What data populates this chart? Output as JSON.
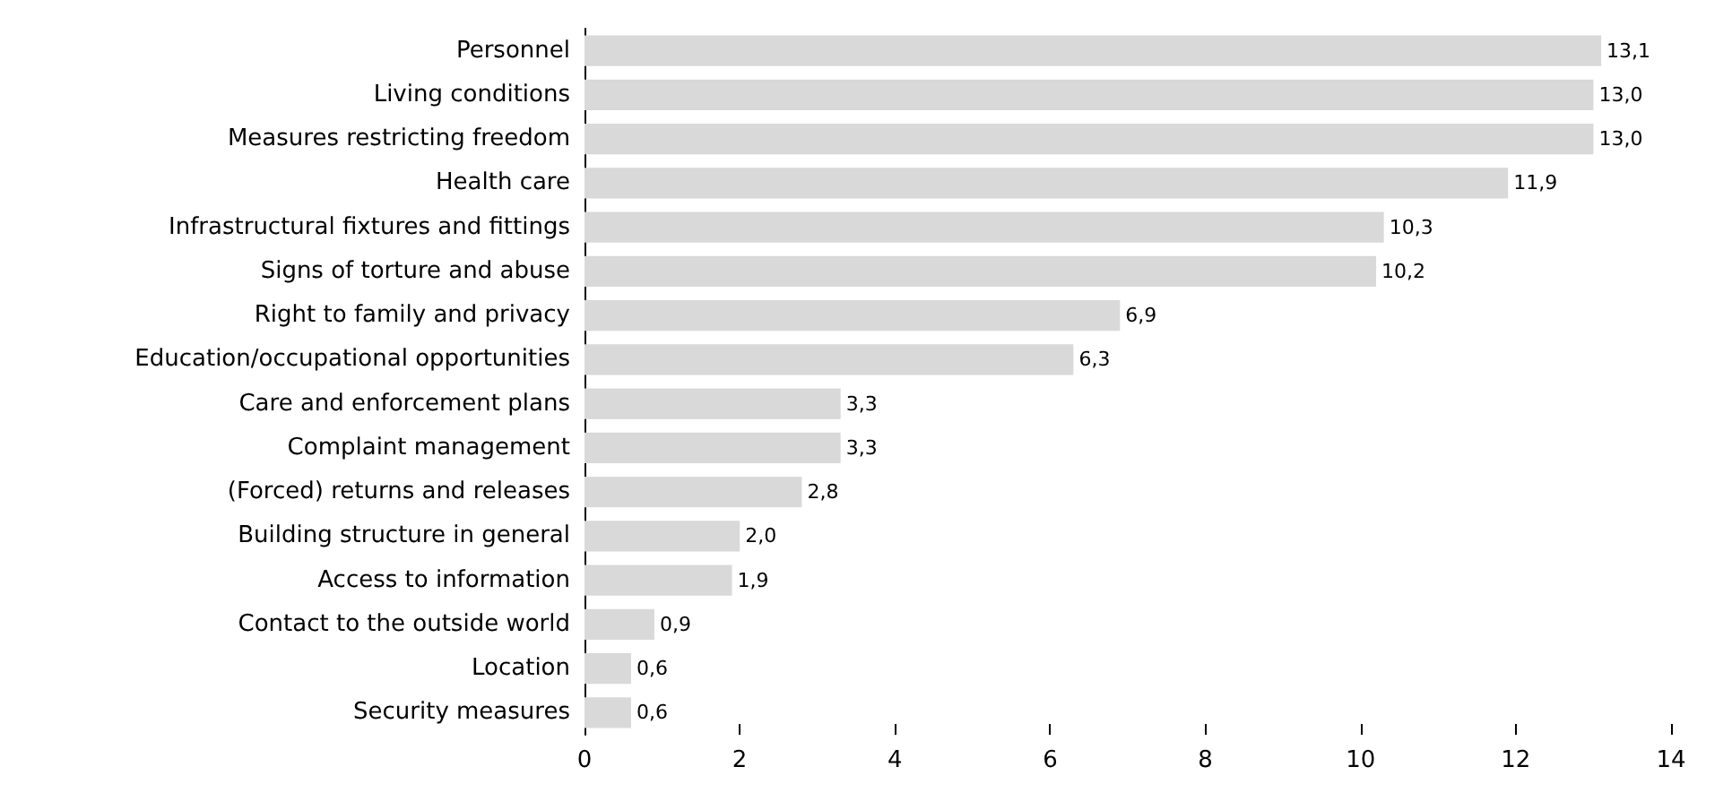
{
  "chart_data": {
    "type": "bar",
    "orientation": "horizontal",
    "categories": [
      "Personnel",
      "Living conditions",
      "Measures restricting freedom",
      "Health care",
      "Infrastructural fixtures and fittings",
      "Signs of torture and abuse",
      "Right to family and privacy",
      "Education/occupational opportunities",
      "Care and enforcement plans",
      "Complaint management",
      "(Forced) returns and releases",
      "Building structure in general",
      "Access to information",
      "Contact to the outside world",
      "Location",
      "Security measures"
    ],
    "values": [
      13.1,
      13.0,
      13.0,
      11.9,
      10.3,
      10.2,
      6.9,
      6.3,
      3.3,
      3.3,
      2.8,
      2.0,
      1.9,
      0.9,
      0.6,
      0.6
    ],
    "value_labels": [
      "13,1",
      "13,0",
      "13,0",
      "11,9",
      "10,3",
      "10,2",
      "6,9",
      "6,3",
      "3,3",
      "3,3",
      "2,8",
      "2,0",
      "1,9",
      "0,9",
      "0,6",
      "0,6"
    ],
    "color": "#d9d9d9",
    "xlim": [
      0,
      14
    ],
    "xticks": [
      0,
      2,
      4,
      6,
      8,
      10,
      12,
      14
    ]
  }
}
